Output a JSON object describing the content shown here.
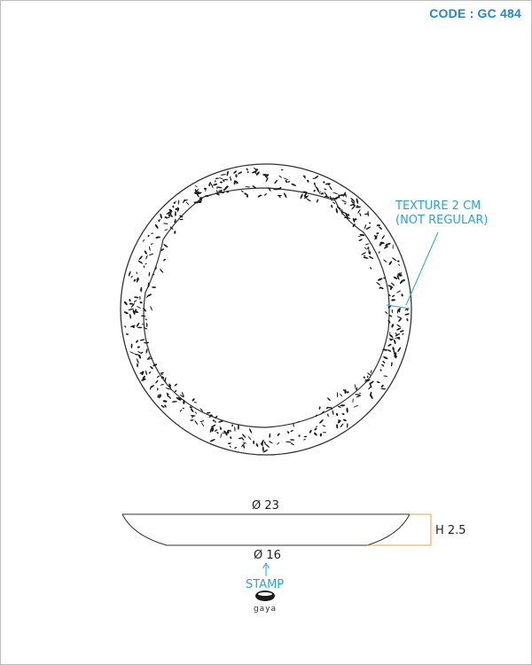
{
  "header": {
    "code": "CODE : GC 484"
  },
  "annotations": {
    "texture_line1": "TEXTURE 2 CM",
    "texture_line2": "(NOT REGULAR)",
    "diameter_top": "Ø 23",
    "diameter_bottom": "Ø 16",
    "height": "H 2.5",
    "stamp": "STAMP"
  },
  "logo": {
    "text": "gaya"
  },
  "colors": {
    "accent": "#2aa3d4",
    "height_marker": "#e8a04a",
    "code": "#1e8bc3"
  }
}
